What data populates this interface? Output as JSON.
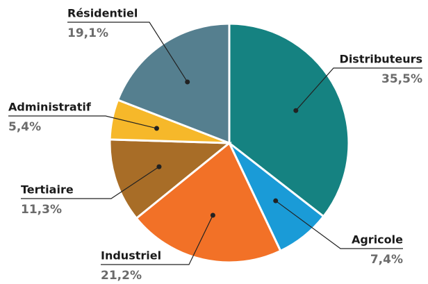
{
  "chart_data": {
    "type": "pie",
    "categories": [
      "Distributeurs",
      "Agricole",
      "Industriel",
      "Tertiaire",
      "Administratif",
      "Résidentiel"
    ],
    "values": [
      35.5,
      7.4,
      21.2,
      11.3,
      5.4,
      19.1
    ],
    "value_labels": [
      "35,5%",
      "7,4%",
      "21,2%",
      "11,3%",
      "5,4%",
      "19,1%"
    ],
    "colors": [
      "#158281",
      "#1a9bd7",
      "#f27127",
      "#a86d27",
      "#f6b82a",
      "#557f8f"
    ]
  }
}
